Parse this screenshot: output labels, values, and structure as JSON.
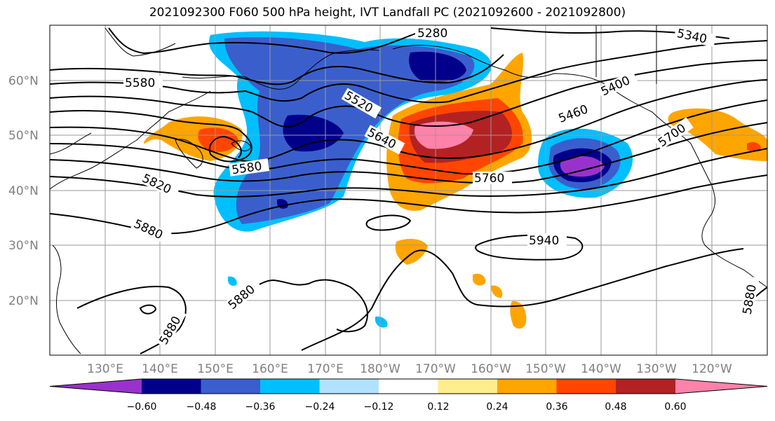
{
  "title": "2021092300 F060 500 hPa height, IVT Landfall PC (2021092600 - 2021092800)",
  "lon_labels": [
    "130°E",
    "140°E",
    "150°E",
    "160°E",
    "170°E",
    "180°W",
    "170°W",
    "160°W",
    "150°W",
    "140°W",
    "130°W",
    "120°W"
  ],
  "lat_labels": [
    "60°N",
    "50°N",
    "40°N",
    "30°N",
    "20°N"
  ],
  "contour_labels": [
    "5280",
    "5340",
    "5400",
    "5460",
    "5520",
    "5580",
    "5580",
    "5640",
    "5700",
    "5760",
    "5820",
    "5880",
    "5880",
    "5880",
    "5880",
    "5940"
  ],
  "colorbar": {
    "ticks": [
      "−0.60",
      "−0.48",
      "−0.36",
      "−0.24",
      "−0.12",
      "0.12",
      "0.24",
      "0.36",
      "0.48",
      "0.60"
    ],
    "colors": [
      "#9932cc",
      "#00008b",
      "#3a5fcd",
      "#00bfff",
      "#b0e2ff",
      "#ffffff",
      "#ffec8b",
      "#ffa500",
      "#ff4500",
      "#b22222",
      "#ff82ab"
    ]
  }
}
